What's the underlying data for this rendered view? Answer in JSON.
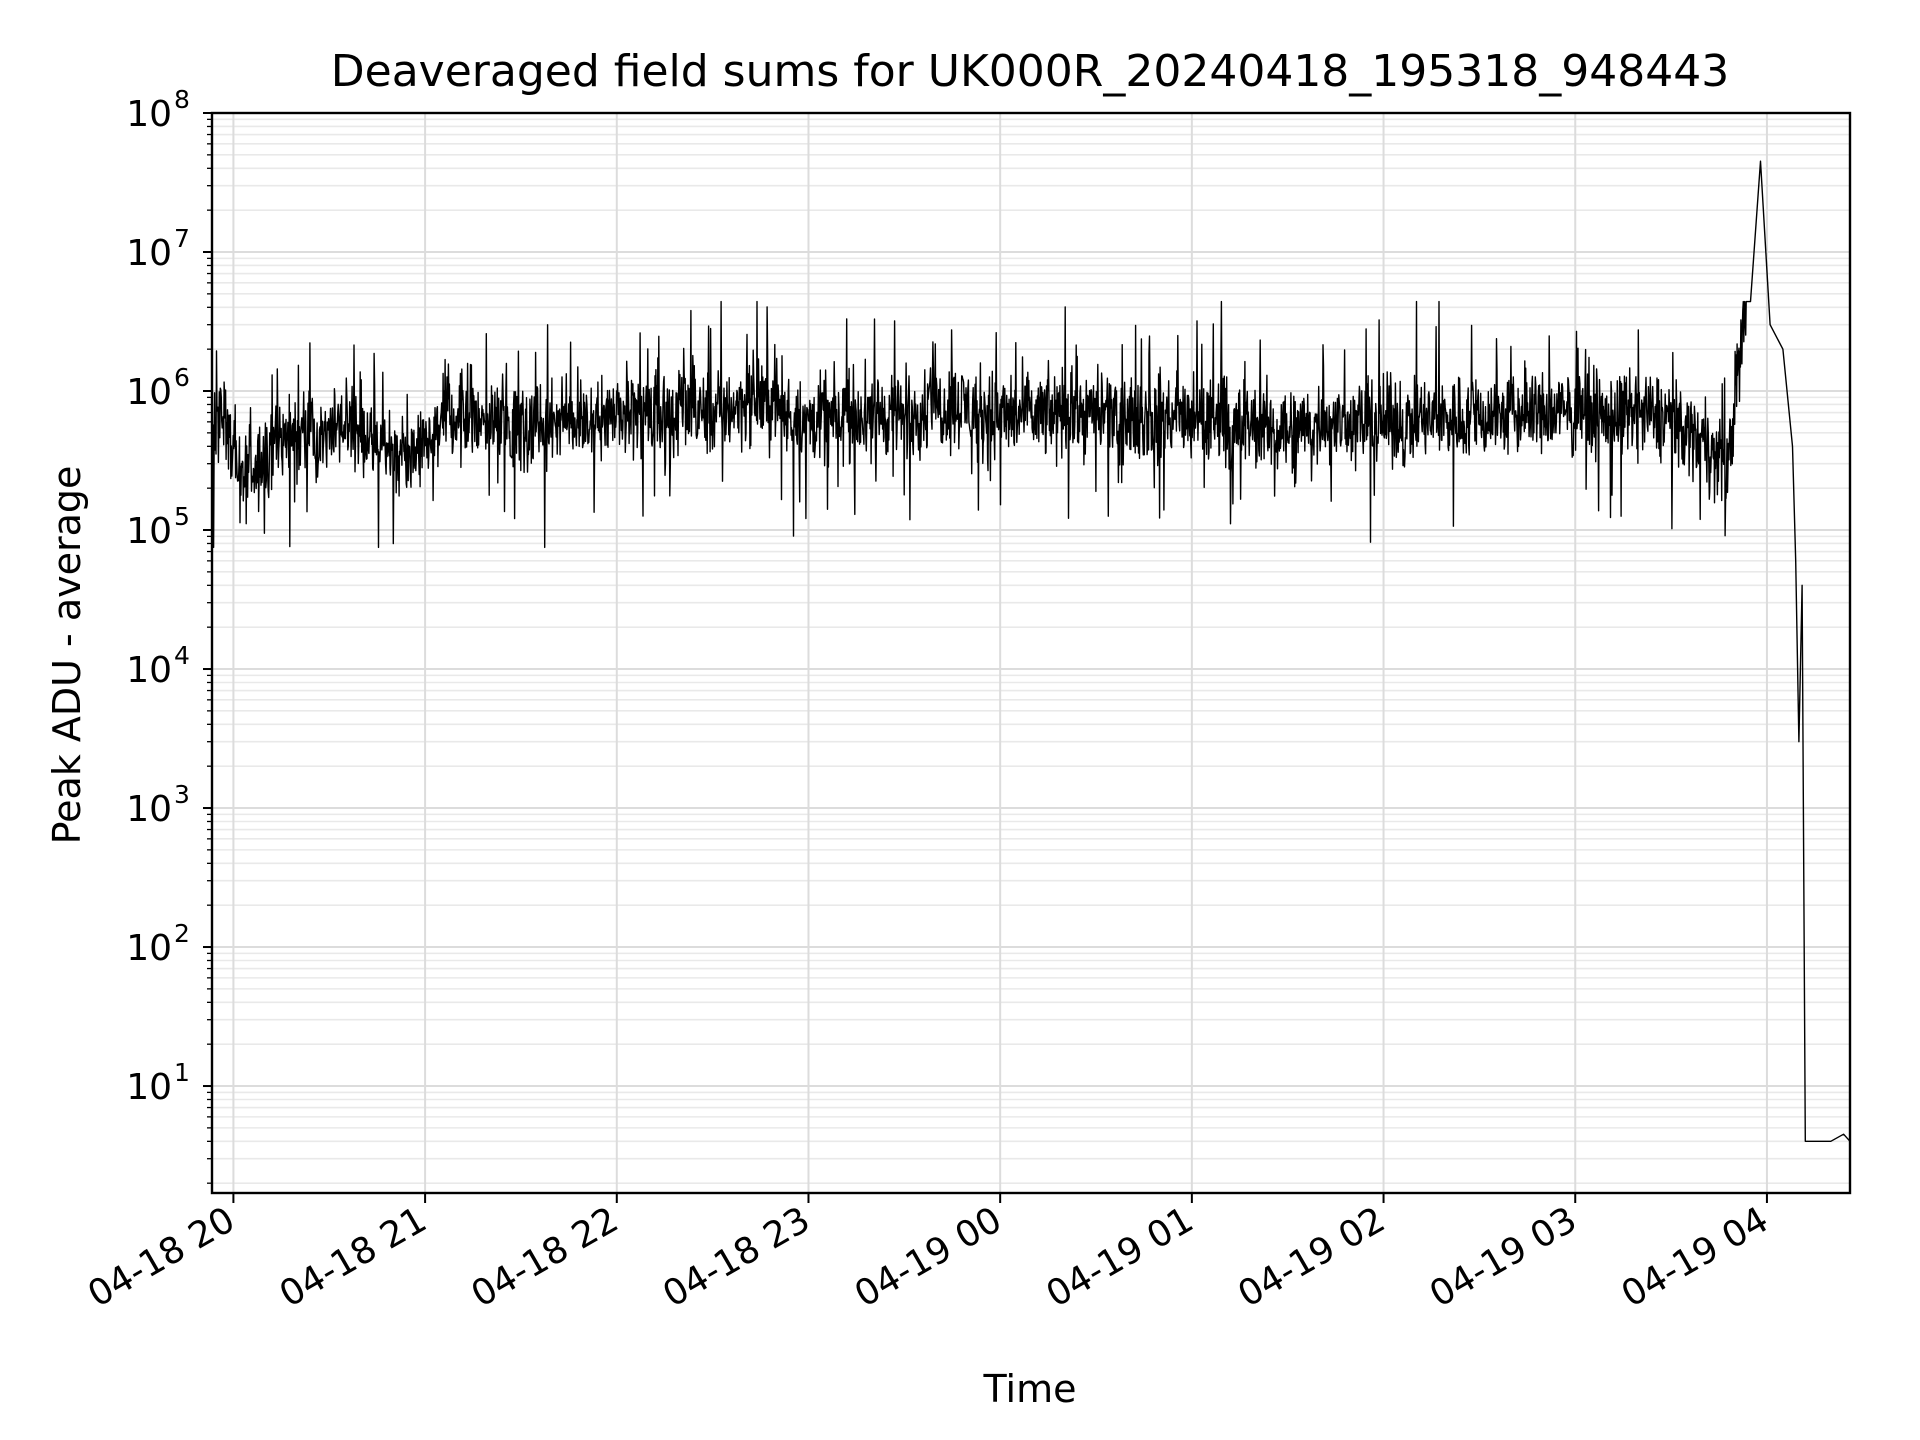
{
  "chart_data": {
    "type": "line",
    "title": "Deaveraged field sums for UK000R_20240418_195318_948443",
    "xlabel": "Time",
    "ylabel": "Peak ADU - average",
    "yscale": "log",
    "ylim": [
      1.7,
      100000000
    ],
    "xlim": [
      "2024-04-18T19:53:18",
      "2024-04-19T04:26:00"
    ],
    "grid": true,
    "x_ticks": [
      {
        "value": "2024-04-18T20:00:00",
        "label": "04-18 20"
      },
      {
        "value": "2024-04-18T21:00:00",
        "label": "04-18 21"
      },
      {
        "value": "2024-04-18T22:00:00",
        "label": "04-18 22"
      },
      {
        "value": "2024-04-18T23:00:00",
        "label": "04-18 23"
      },
      {
        "value": "2024-04-19T00:00:00",
        "label": "04-19 00"
      },
      {
        "value": "2024-04-19T01:00:00",
        "label": "04-19 01"
      },
      {
        "value": "2024-04-19T02:00:00",
        "label": "04-19 02"
      },
      {
        "value": "2024-04-19T03:00:00",
        "label": "04-19 03"
      },
      {
        "value": "2024-04-19T04:00:00",
        "label": "04-19 04"
      }
    ],
    "y_ticks": [
      {
        "value": 10,
        "base": "10",
        "exp": "1"
      },
      {
        "value": 100,
        "base": "10",
        "exp": "2"
      },
      {
        "value": 1000,
        "base": "10",
        "exp": "3"
      },
      {
        "value": 10000,
        "base": "10",
        "exp": "4"
      },
      {
        "value": 100000,
        "base": "10",
        "exp": "5"
      },
      {
        "value": 1000000,
        "base": "10",
        "exp": "6"
      },
      {
        "value": 10000000,
        "base": "10",
        "exp": "7"
      },
      {
        "value": 100000000,
        "base": "10",
        "exp": "8"
      }
    ],
    "series": [
      {
        "color": "#000000",
        "typical_range": [
          100000,
          2000000
        ],
        "x": [
          "2024-04-18T19:53:30",
          "2024-04-18T19:56:00",
          "2024-04-18T19:59:00",
          "2024-04-18T20:02:00",
          "2024-04-18T20:07:00",
          "2024-04-18T20:15:00",
          "2024-04-18T20:25:00",
          "2024-04-18T20:35:00",
          "2024-04-18T20:45:00",
          "2024-04-18T20:55:00",
          "2024-04-18T21:07:00",
          "2024-04-18T21:30:00",
          "2024-04-18T22:00:00",
          "2024-04-18T22:30:00",
          "2024-04-18T22:45:00",
          "2024-04-18T23:00:00",
          "2024-04-18T23:30:00",
          "2024-04-18T23:47:00",
          "2024-04-19T00:00:00",
          "2024-04-19T00:30:00",
          "2024-04-19T01:00:00",
          "2024-04-19T01:30:00",
          "2024-04-19T02:00:00",
          "2024-04-19T02:30:00",
          "2024-04-19T03:00:00",
          "2024-04-19T03:30:00",
          "2024-04-19T03:48:00",
          "2024-04-19T03:58:00",
          "2024-04-19T04:01:00",
          "2024-04-19T04:05:00",
          "2024-04-19T04:08:00",
          "2024-04-19T04:09:00",
          "2024-04-19T04:10:00",
          "2024-04-19T04:11:00",
          "2024-04-19T04:12:00",
          "2024-04-19T04:14:00",
          "2024-04-19T04:20:00",
          "2024-04-19T04:24:00",
          "2024-04-19T04:26:00"
        ],
        "y": [
          400000,
          700000,
          500000,
          300000,
          250000,
          450000,
          500000,
          600000,
          400000,
          350000,
          700000,
          600000,
          650000,
          700000,
          900000,
          600000,
          700000,
          800000,
          650000,
          700000,
          600000,
          550000,
          600000,
          650000,
          700000,
          650000,
          300000,
          45000000,
          3000000,
          2000000,
          400000,
          60000,
          3000,
          40000,
          4,
          4,
          4,
          4.5,
          4
        ]
      }
    ]
  }
}
